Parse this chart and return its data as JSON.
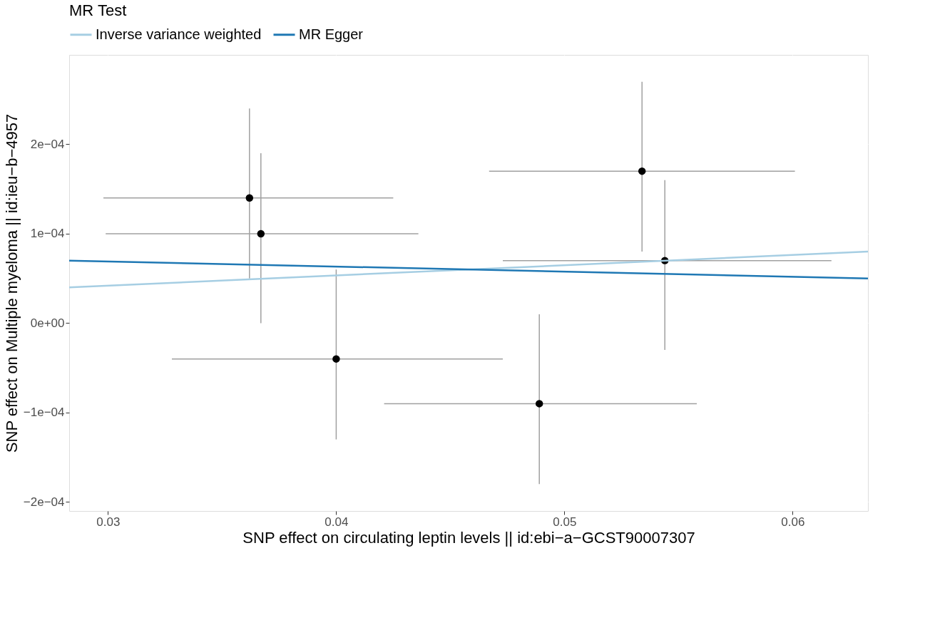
{
  "chart_data": {
    "type": "scatter",
    "xlabel": "SNP effect on circulating leptin levels || id:ebi−a−GCST90007307",
    "ylabel": "SNP effect on Multiple myeloma || id:ieu−b−4957",
    "legend_title": "MR Test",
    "legend": "top",
    "grid": true,
    "xlim": [
      0.0283,
      0.0633
    ],
    "ylim": [
      -0.00021,
      0.0003
    ],
    "xticks": [
      0.03,
      0.04,
      0.05,
      0.06
    ],
    "yticks": [
      {
        "value": -0.0002,
        "label": "−2e−04"
      },
      {
        "value": -0.0001,
        "label": "−1e−04"
      },
      {
        "value": 0,
        "label": "0e+00"
      },
      {
        "value": 0.0001,
        "label": "1e−04"
      },
      {
        "value": 0.0002,
        "label": "2e−04"
      }
    ],
    "series": [
      {
        "marker": "circle",
        "color": "#000000",
        "x": [
          0.0362,
          0.0367,
          0.04,
          0.0489,
          0.0534,
          0.0544
        ],
        "values": [
          0.00014,
          0.0001,
          -4e-05,
          -9e-05,
          0.00017,
          7e-05
        ],
        "errors": [
          [
            5e-05,
            0.00024
          ],
          [
            0.0,
            0.00019
          ],
          [
            -0.00013,
            6e-05
          ],
          [
            -0.00018,
            1e-05
          ],
          [
            8e-05,
            0.00027
          ],
          [
            -3e-05,
            0.00016
          ]
        ],
        "xerrors": [
          [
            0.0298,
            0.0425
          ],
          [
            0.0299,
            0.0436
          ],
          [
            0.0328,
            0.0473
          ],
          [
            0.0421,
            0.0558
          ],
          [
            0.0467,
            0.0601
          ],
          [
            0.0473,
            0.0617
          ]
        ]
      },
      {
        "type": "line",
        "name": "Inverse variance weighted",
        "color": "#a6cee3",
        "x": [
          0.0283,
          0.0633
        ],
        "values": [
          4e-05,
          8e-05
        ]
      },
      {
        "type": "line",
        "name": "MR Egger",
        "color": "#1f78b4",
        "x": [
          0.0283,
          0.0633
        ],
        "values": [
          7e-05,
          5e-05
        ]
      }
    ]
  }
}
